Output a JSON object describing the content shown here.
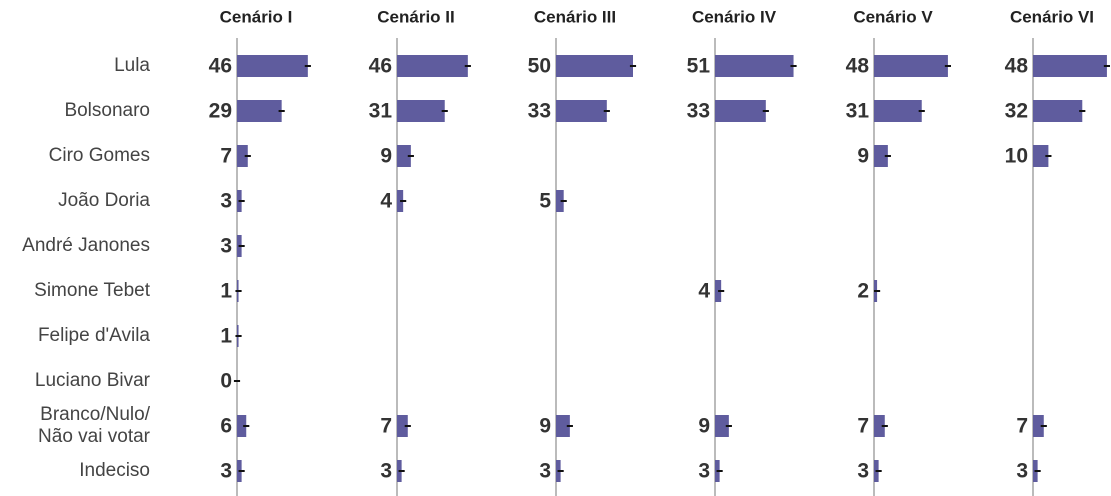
{
  "chart_data": {
    "type": "bar",
    "orientation": "horizontal",
    "color": "#5f5c9e",
    "categories": [
      "Lula",
      "Bolsonaro",
      "Ciro Gomes",
      "João Doria",
      "André Janones",
      "Simone Tebet",
      "Felipe d'Avila",
      "Luciano Bivar",
      "Branco/Nulo/\nNão vai votar",
      "Indeciso"
    ],
    "xlim": [
      0,
      100
    ],
    "series": [
      {
        "name": "Cenário I",
        "values": [
          46,
          29,
          7,
          3,
          3,
          1,
          1,
          0,
          6,
          3
        ],
        "errors": [
          2,
          2,
          2,
          2,
          2,
          2,
          2,
          2,
          2,
          2
        ]
      },
      {
        "name": "Cenário II",
        "values": [
          46,
          31,
          9,
          4,
          null,
          null,
          null,
          null,
          7,
          3
        ],
        "errors": [
          2,
          2,
          2,
          2,
          null,
          null,
          null,
          null,
          2,
          2
        ]
      },
      {
        "name": "Cenário III",
        "values": [
          50,
          33,
          null,
          5,
          null,
          null,
          null,
          null,
          9,
          3
        ],
        "errors": [
          2,
          2,
          null,
          2,
          null,
          null,
          null,
          null,
          2,
          2
        ]
      },
      {
        "name": "Cenário IV",
        "values": [
          51,
          33,
          null,
          null,
          null,
          4,
          null,
          null,
          9,
          3
        ],
        "errors": [
          2,
          2,
          null,
          null,
          null,
          2,
          null,
          null,
          2,
          2
        ]
      },
      {
        "name": "Cenário V",
        "values": [
          48,
          31,
          9,
          null,
          null,
          2,
          null,
          null,
          7,
          3
        ],
        "errors": [
          2,
          2,
          2,
          null,
          null,
          2,
          null,
          null,
          2,
          2
        ]
      },
      {
        "name": "Cenário VI",
        "values": [
          48,
          32,
          10,
          null,
          null,
          null,
          null,
          null,
          7,
          3
        ],
        "errors": [
          2,
          2,
          2,
          null,
          null,
          null,
          null,
          null,
          2,
          2
        ]
      }
    ]
  }
}
